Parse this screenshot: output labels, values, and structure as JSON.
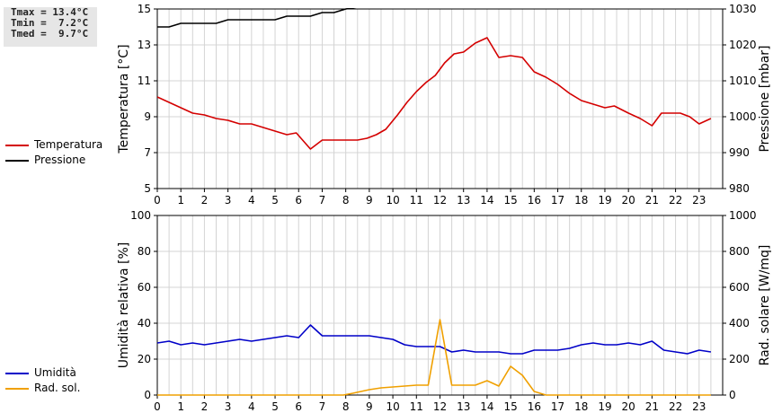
{
  "stats": {
    "tmax": "Tmax = 13.4°C",
    "tmin": "Tmin =  7.2°C",
    "tmed": "Tmed =  9.7°C"
  },
  "colors": {
    "temperature": "#d40000",
    "pressure": "#000000",
    "humidity": "#0000c8",
    "radiation": "#f0a000",
    "grid": "#d4d4d4"
  },
  "chart_data": [
    {
      "type": "line",
      "x_ticks": [
        "0",
        "1",
        "2",
        "3",
        "4",
        "5",
        "6",
        "7",
        "8",
        "9",
        "10",
        "11",
        "12",
        "13",
        "14",
        "15",
        "16",
        "17",
        "18",
        "19",
        "20",
        "21",
        "22",
        "23"
      ],
      "xlim": [
        0,
        24
      ],
      "y_left": {
        "label": "Temperatura [°C]",
        "lim": [
          5,
          15
        ],
        "ticks": [
          "5",
          "7",
          "9",
          "11",
          "13",
          "15"
        ]
      },
      "y_right": {
        "label": "Pressione [mbar]",
        "lim": [
          980,
          1030
        ],
        "ticks": [
          "980",
          "990",
          "1000",
          "1010",
          "1020",
          "1030"
        ]
      },
      "grid": true,
      "legend_position": "left",
      "series": [
        {
          "name": "Temperatura",
          "axis": "left",
          "x": [
            0,
            0.5,
            1,
            1.5,
            2,
            2.5,
            3,
            3.5,
            4,
            4.5,
            5,
            5.5,
            5.9,
            6.5,
            7,
            7.5,
            8,
            8.5,
            8.9,
            9.3,
            9.7,
            10.2,
            10.6,
            11,
            11.4,
            11.8,
            12.2,
            12.6,
            13,
            13.5,
            14,
            14.5,
            15,
            15.5,
            16,
            16.5,
            17,
            17.5,
            18,
            18.5,
            19,
            19.4,
            20,
            20.5,
            21,
            21.4,
            21.8,
            22.2,
            22.6,
            23,
            23.5
          ],
          "y": [
            10.1,
            9.8,
            9.5,
            9.2,
            9.1,
            8.9,
            8.8,
            8.6,
            8.6,
            8.4,
            8.2,
            8.0,
            8.1,
            7.2,
            7.7,
            7.7,
            7.7,
            7.7,
            7.8,
            8.0,
            8.3,
            9.1,
            9.8,
            10.4,
            10.9,
            11.3,
            12.0,
            12.5,
            12.6,
            13.1,
            13.4,
            12.3,
            12.4,
            12.3,
            11.5,
            11.2,
            10.8,
            10.3,
            9.9,
            9.7,
            9.5,
            9.6,
            9.2,
            8.9,
            8.5,
            9.2,
            9.2,
            9.2,
            9.0,
            8.6,
            8.9
          ]
        },
        {
          "name": "Pressione",
          "axis": "right",
          "x": [
            0,
            0.5,
            1,
            1.5,
            2,
            2.5,
            3,
            3.5,
            4,
            4.5,
            5,
            5.5,
            6,
            6.5,
            7,
            7.5,
            8,
            8.5
          ],
          "y": [
            1025,
            1025,
            1026,
            1026,
            1026,
            1026,
            1027,
            1027,
            1027,
            1027,
            1027,
            1028,
            1028,
            1028,
            1029,
            1029,
            1030,
            1030.5
          ]
        }
      ]
    },
    {
      "type": "line",
      "x_ticks": [
        "0",
        "1",
        "2",
        "3",
        "4",
        "5",
        "6",
        "7",
        "8",
        "9",
        "10",
        "11",
        "12",
        "13",
        "14",
        "15",
        "16",
        "17",
        "18",
        "19",
        "20",
        "21",
        "22",
        "23"
      ],
      "xlim": [
        0,
        24
      ],
      "y_left": {
        "label": "Umidità relativa [%]",
        "lim": [
          0,
          100
        ],
        "ticks": [
          "0",
          "20",
          "40",
          "60",
          "80",
          "100"
        ]
      },
      "y_right": {
        "label": "Rad. solare [W/mq]",
        "lim": [
          0,
          1000
        ],
        "ticks": [
          "0",
          "200",
          "400",
          "600",
          "800",
          "1000"
        ]
      },
      "grid": true,
      "legend_position": "left",
      "series": [
        {
          "name": "Umidità",
          "axis": "left",
          "x": [
            0,
            0.5,
            1,
            1.5,
            2,
            2.5,
            3,
            3.5,
            4,
            4.5,
            5,
            5.5,
            6,
            6.5,
            7,
            7.5,
            8,
            8.5,
            9,
            9.5,
            10,
            10.5,
            11,
            11.5,
            12,
            12.5,
            13,
            13.5,
            14,
            14.5,
            15,
            15.5,
            16,
            16.5,
            17,
            17.5,
            18,
            18.5,
            19,
            19.5,
            20,
            20.5,
            21,
            21.5,
            22,
            22.5,
            23,
            23.5
          ],
          "y": [
            29,
            30,
            28,
            29,
            28,
            29,
            30,
            31,
            30,
            31,
            32,
            33,
            32,
            39,
            33,
            33,
            33,
            33,
            33,
            32,
            31,
            28,
            27,
            27,
            27,
            24,
            25,
            24,
            24,
            24,
            23,
            23,
            25,
            25,
            25,
            26,
            28,
            29,
            28,
            28,
            29,
            28,
            30,
            25,
            24,
            23,
            25,
            24
          ]
        },
        {
          "name": "Rad. sol.",
          "axis": "right",
          "x": [
            0,
            1,
            2,
            3,
            4,
            5,
            6,
            7,
            7.9,
            8.3,
            9,
            9.5,
            10,
            10.5,
            11,
            11.5,
            12,
            12.5,
            13,
            13.5,
            14,
            14.5,
            15,
            15.5,
            16,
            16.5,
            17,
            18,
            19,
            20,
            21,
            22,
            23,
            23.5
          ],
          "y": [
            0,
            0,
            0,
            0,
            0,
            0,
            0,
            0,
            0,
            10,
            30,
            40,
            45,
            50,
            55,
            55,
            420,
            55,
            55,
            55,
            80,
            50,
            160,
            110,
            20,
            0,
            0,
            0,
            0,
            0,
            0,
            0,
            0,
            0
          ]
        }
      ]
    }
  ]
}
